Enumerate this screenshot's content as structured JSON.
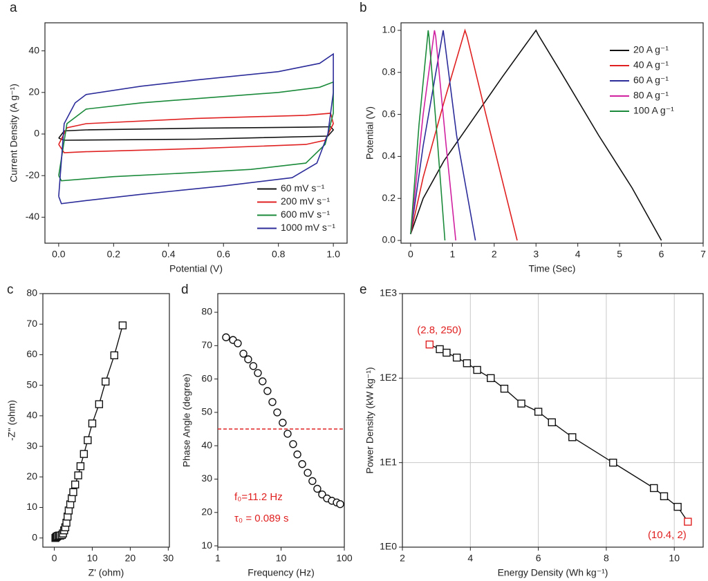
{
  "chart_data": [
    {
      "type": "line",
      "panel": "a",
      "xlabel": "Potential (V)",
      "ylabel": "Current Density (A g⁻¹)",
      "xlim": [
        -0.05,
        1.05
      ],
      "ylim": [
        -52.5,
        53.5
      ],
      "xticks": [
        {
          "value": 0,
          "label": "0.0"
        },
        0.2,
        0.4,
        0.6,
        0.8,
        {
          "value": 1,
          "label": "1.0"
        }
      ],
      "yticks": [
        -40,
        -20,
        0,
        20,
        40
      ],
      "legend": "lower right",
      "grid": false,
      "series": [
        {
          "name": "60 mV s⁻¹",
          "color": "#111111",
          "x": [
            0,
            0.02,
            0.1,
            0.5,
            0.9,
            0.99,
            1.0,
            0.98,
            0.5,
            0.02,
            0
          ],
          "values": [
            -2,
            1.5,
            2,
            2.8,
            3.3,
            3.5,
            2,
            -1,
            -2.5,
            -3,
            -2
          ]
        },
        {
          "name": "200 mV s⁻¹",
          "color": "#e02020",
          "x": [
            0,
            0.03,
            0.1,
            0.5,
            0.9,
            0.99,
            1.0,
            0.97,
            0.9,
            0.5,
            0.1,
            0.02,
            0
          ],
          "values": [
            -5,
            3,
            5,
            7.5,
            9,
            10,
            5,
            -3,
            -5,
            -7,
            -8.5,
            -9,
            -5
          ]
        },
        {
          "name": "600 mV s⁻¹",
          "color": "#1a8a3a",
          "x": [
            0,
            0.03,
            0.1,
            0.3,
            0.5,
            0.8,
            0.95,
            1.0,
            1.0,
            0.97,
            0.9,
            0.7,
            0.5,
            0.2,
            0.01,
            0
          ],
          "values": [
            -20,
            5,
            12,
            15,
            17,
            20,
            22.5,
            25,
            10,
            -5,
            -14,
            -17,
            -18.5,
            -20.5,
            -22.5,
            -20
          ]
        },
        {
          "name": "1000 mV s⁻¹",
          "color": "#2b2b9a",
          "x": [
            0,
            0.02,
            0.06,
            0.1,
            0.3,
            0.5,
            0.8,
            0.95,
            1.0,
            1.0,
            0.98,
            0.94,
            0.85,
            0.6,
            0.3,
            0.1,
            0.01,
            0
          ],
          "values": [
            -30,
            5,
            15,
            19,
            23,
            26,
            30,
            34,
            38.5,
            20,
            0,
            -14,
            -21,
            -25,
            -29,
            -32,
            -33.5,
            -30
          ]
        }
      ]
    },
    {
      "type": "line",
      "panel": "b",
      "xlabel": "Time (Sec)",
      "ylabel": "Potential (V)",
      "xlim": [
        -0.23,
        7
      ],
      "ylim": [
        -0.013,
        1.036
      ],
      "xticks": [
        0,
        1,
        2,
        3,
        4,
        5,
        6,
        7
      ],
      "yticks": [
        {
          "value": 0,
          "label": "0.0"
        },
        0.2,
        0.4,
        0.6,
        0.8,
        {
          "value": 1,
          "label": "1.0"
        }
      ],
      "legend": "upper right",
      "grid": false,
      "series": [
        {
          "name": "20 A g⁻¹",
          "color": "#111111",
          "x": [
            0,
            0.3,
            0.8,
            1.5,
            2.2,
            3.0,
            3.05,
            3.6,
            4.5,
            5.3,
            6.0
          ],
          "values": [
            0.03,
            0.2,
            0.38,
            0.58,
            0.78,
            1.0,
            0.98,
            0.8,
            0.5,
            0.25,
            0
          ]
        },
        {
          "name": "40 A g⁻¹",
          "color": "#e02020",
          "x": [
            0,
            0.3,
            0.8,
            1.3,
            1.35,
            1.8,
            2.2,
            2.55
          ],
          "values": [
            0.03,
            0.3,
            0.66,
            1.0,
            0.97,
            0.6,
            0.28,
            0
          ]
        },
        {
          "name": "60 A g⁻¹",
          "color": "#2b2b9a",
          "x": [
            0,
            0.3,
            0.78,
            0.8,
            1.1,
            1.55
          ],
          "values": [
            0.03,
            0.45,
            1.0,
            0.97,
            0.5,
            0
          ]
        },
        {
          "name": "80 A g⁻¹",
          "color": "#d020a0",
          "x": [
            0,
            0.3,
            0.57,
            0.6,
            0.85,
            1.08
          ],
          "values": [
            0.03,
            0.6,
            1.0,
            0.97,
            0.45,
            0
          ]
        },
        {
          "name": "100 A g⁻¹",
          "color": "#1a8a3a",
          "x": [
            0,
            0.2,
            0.42,
            0.44,
            0.65,
            0.82
          ],
          "values": [
            0.03,
            0.55,
            1.0,
            0.97,
            0.45,
            0
          ]
        }
      ]
    },
    {
      "type": "scatter",
      "panel": "c",
      "xlabel": "Z' (ohm)",
      "ylabel": "-Z'' (ohm)",
      "xlim": [
        -3,
        30.3
      ],
      "ylim": [
        -3,
        80
      ],
      "xticks": [
        0,
        10,
        20,
        30
      ],
      "yticks": [
        0,
        10,
        20,
        30,
        40,
        50,
        60,
        70,
        80
      ],
      "grid": false,
      "series": [
        {
          "color": "#111111",
          "marker": "square",
          "connect": true,
          "x": [
            0.3,
            0.5,
            0.7,
            1,
            1.3,
            1.6,
            2,
            2.3,
            2.6,
            2.9,
            3.2,
            3.5,
            3.8,
            4.2,
            4.6,
            5,
            5.5,
            6.3,
            6.9,
            7.8,
            8.8,
            10,
            11.8,
            13.5,
            15.8,
            18
          ],
          "values": [
            0,
            0.3,
            0.5,
            0.7,
            0.8,
            0.8,
            1,
            1.5,
            2.5,
            3.5,
            5,
            7,
            9,
            11,
            13,
            15,
            17.5,
            20.5,
            23.5,
            27.5,
            32,
            37.5,
            43.8,
            51.2,
            59.8,
            69.6
          ]
        }
      ]
    },
    {
      "type": "scatter",
      "panel": "d",
      "xlabel": "Frequency (Hz)",
      "ylabel": "Phase Angle (degree)",
      "xlim": [
        1,
        100
      ],
      "ylim": [
        9.6,
        85.6
      ],
      "xlog": true,
      "xticks": [
        1,
        10,
        100
      ],
      "yticks": [
        10,
        20,
        30,
        40,
        50,
        60,
        70,
        80
      ],
      "grid": false,
      "hline": {
        "value": 45,
        "color": "#e02020"
      },
      "annotations": [
        {
          "text": "f₀=11.2 Hz",
          "color": "#e02020"
        },
        {
          "text": "τ₀ = 0.089 s",
          "color": "#e02020"
        }
      ],
      "series": [
        {
          "color": "#111111",
          "marker": "circle",
          "connect": false,
          "x": [
            1.35,
            1.74,
            2.07,
            2.54,
            3.02,
            3.64,
            4.3,
            5.1,
            6.1,
            7.3,
            8.7,
            10.6,
            12.7,
            15.5,
            18.1,
            21.6,
            26.4,
            31.3,
            37.4,
            44.6,
            53.3,
            63.6,
            75.9,
            86
          ],
          "values": [
            72.5,
            71.7,
            70.7,
            67.6,
            65.9,
            63.9,
            61.8,
            59.3,
            56.4,
            53.1,
            50,
            46.9,
            43.6,
            40.5,
            37.4,
            34.5,
            31.9,
            29.4,
            27.1,
            25.4,
            24.2,
            23.5,
            23,
            22.5
          ]
        }
      ]
    },
    {
      "type": "scatter",
      "panel": "e",
      "xlabel": "Energy Density (Wh kg⁻¹)",
      "ylabel": "Power Density (kW kg⁻¹)",
      "xlim": [
        2,
        10.85
      ],
      "ylim": [
        1,
        1000
      ],
      "ylog": true,
      "xticks": [
        2,
        4,
        6,
        8,
        10
      ],
      "yticks": [
        {
          "value": 1,
          "label": "1E0"
        },
        {
          "value": 10,
          "label": "1E1"
        },
        {
          "value": 100,
          "label": "1E2"
        },
        {
          "value": 1000,
          "label": "1E3"
        }
      ],
      "grid": true,
      "annotations": [
        {
          "text": "(2.8, 250)",
          "color": "#e02020"
        },
        {
          "text": "(10.4, 2)",
          "color": "#e02020"
        }
      ],
      "series": [
        {
          "color": "#111111",
          "marker": "square",
          "connect": true,
          "highlight": [
            0,
            16
          ],
          "highlight_color": "#e02020",
          "x": [
            2.8,
            3.1,
            3.3,
            3.6,
            3.9,
            4.2,
            4.6,
            5,
            5.5,
            6,
            6.4,
            7,
            8.2,
            9.4,
            9.7,
            10.1,
            10.4
          ],
          "values": [
            250,
            220,
            200,
            175,
            150,
            125,
            100,
            75,
            50,
            40,
            30,
            20,
            10,
            5,
            4,
            3,
            2
          ]
        }
      ]
    }
  ]
}
